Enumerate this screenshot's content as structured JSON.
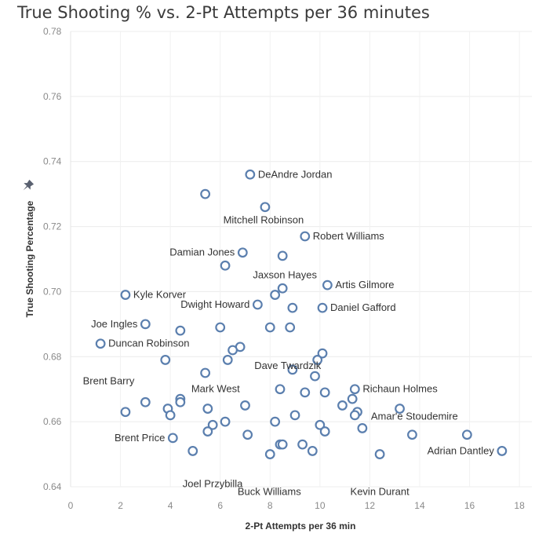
{
  "chart_data": {
    "type": "scatter",
    "title": "True Shooting % vs. 2-Pt Attempts per 36 minutes",
    "xlabel": "2-Pt Attempts per 36 min",
    "ylabel": "True Shooting Percentage",
    "xlim": [
      0,
      18.5
    ],
    "ylim": [
      0.64,
      0.78
    ],
    "xticks": [
      "0",
      "2",
      "4",
      "6",
      "8",
      "10",
      "12",
      "14",
      "16",
      "18"
    ],
    "yticks": [
      "0.64",
      "0.66",
      "0.68",
      "0.70",
      "0.72",
      "0.74",
      "0.76",
      "0.78"
    ],
    "grid": true,
    "marker_color": "#5b7fae",
    "points": [
      {
        "x": 7.2,
        "y": 0.736,
        "label": "DeAndre Jordan"
      },
      {
        "x": 5.4,
        "y": 0.73
      },
      {
        "x": 7.8,
        "y": 0.726,
        "label": "Mitchell Robinson"
      },
      {
        "x": 9.4,
        "y": 0.717,
        "label": "Robert Williams"
      },
      {
        "x": 6.9,
        "y": 0.712,
        "label": "Damian Jones"
      },
      {
        "x": 8.5,
        "y": 0.711
      },
      {
        "x": 6.2,
        "y": 0.708
      },
      {
        "x": 8.5,
        "y": 0.701,
        "label": "Jaxson Hayes"
      },
      {
        "x": 10.3,
        "y": 0.702,
        "label": "Artis Gilmore"
      },
      {
        "x": 8.2,
        "y": 0.699
      },
      {
        "x": 2.2,
        "y": 0.699,
        "label": "Kyle Korver"
      },
      {
        "x": 7.5,
        "y": 0.696,
        "label": "Dwight Howard"
      },
      {
        "x": 8.9,
        "y": 0.695
      },
      {
        "x": 10.1,
        "y": 0.695,
        "label": "Daniel Gafford"
      },
      {
        "x": 3.0,
        "y": 0.69,
        "label": "Joe Ingles"
      },
      {
        "x": 4.4,
        "y": 0.688
      },
      {
        "x": 6.0,
        "y": 0.689
      },
      {
        "x": 8.0,
        "y": 0.689
      },
      {
        "x": 8.8,
        "y": 0.689,
        "label": "Dave Twardzik"
      },
      {
        "x": 1.2,
        "y": 0.684,
        "label": "Duncan Robinson"
      },
      {
        "x": 6.8,
        "y": 0.683
      },
      {
        "x": 6.5,
        "y": 0.682
      },
      {
        "x": 10.1,
        "y": 0.681
      },
      {
        "x": 3.8,
        "y": 0.679
      },
      {
        "x": 6.3,
        "y": 0.679
      },
      {
        "x": 9.9,
        "y": 0.679
      },
      {
        "x": 8.9,
        "y": 0.676
      },
      {
        "x": 5.4,
        "y": 0.675
      },
      {
        "x": 9.8,
        "y": 0.674
      },
      {
        "x": 8.4,
        "y": 0.67
      },
      {
        "x": 9.4,
        "y": 0.669
      },
      {
        "x": 10.2,
        "y": 0.669
      },
      {
        "x": 11.4,
        "y": 0.67,
        "label": "Richaun Holmes"
      },
      {
        "x": 11.3,
        "y": 0.667
      },
      {
        "x": 4.4,
        "y": 0.667
      },
      {
        "x": 4.4,
        "y": 0.666,
        "label": "Mark West"
      },
      {
        "x": 3.0,
        "y": 0.666,
        "label": "Brent Barry"
      },
      {
        "x": 7.0,
        "y": 0.665
      },
      {
        "x": 10.9,
        "y": 0.665
      },
      {
        "x": 3.9,
        "y": 0.664
      },
      {
        "x": 5.5,
        "y": 0.664
      },
      {
        "x": 13.2,
        "y": 0.664
      },
      {
        "x": 11.5,
        "y": 0.663
      },
      {
        "x": 2.2,
        "y": 0.663
      },
      {
        "x": 4.0,
        "y": 0.662
      },
      {
        "x": 9.0,
        "y": 0.662
      },
      {
        "x": 11.4,
        "y": 0.662
      },
      {
        "x": 6.2,
        "y": 0.66
      },
      {
        "x": 8.2,
        "y": 0.66
      },
      {
        "x": 5.7,
        "y": 0.659
      },
      {
        "x": 10.0,
        "y": 0.659
      },
      {
        "x": 11.7,
        "y": 0.658,
        "label": "Amar'e Stoudemire"
      },
      {
        "x": 5.5,
        "y": 0.657
      },
      {
        "x": 10.2,
        "y": 0.657
      },
      {
        "x": 7.1,
        "y": 0.656
      },
      {
        "x": 13.7,
        "y": 0.656
      },
      {
        "x": 15.9,
        "y": 0.656
      },
      {
        "x": 4.1,
        "y": 0.655,
        "label": "Brent Price"
      },
      {
        "x": 8.4,
        "y": 0.653
      },
      {
        "x": 8.5,
        "y": 0.653
      },
      {
        "x": 9.3,
        "y": 0.653
      },
      {
        "x": 17.3,
        "y": 0.651,
        "label": "Adrian Dantley"
      },
      {
        "x": 4.9,
        "y": 0.651,
        "label": "Joel Przybilla"
      },
      {
        "x": 9.7,
        "y": 0.651
      },
      {
        "x": 8.0,
        "y": 0.65,
        "label": "Buck Williams"
      },
      {
        "x": 12.4,
        "y": 0.65,
        "label": "Kevin Durant"
      }
    ]
  }
}
